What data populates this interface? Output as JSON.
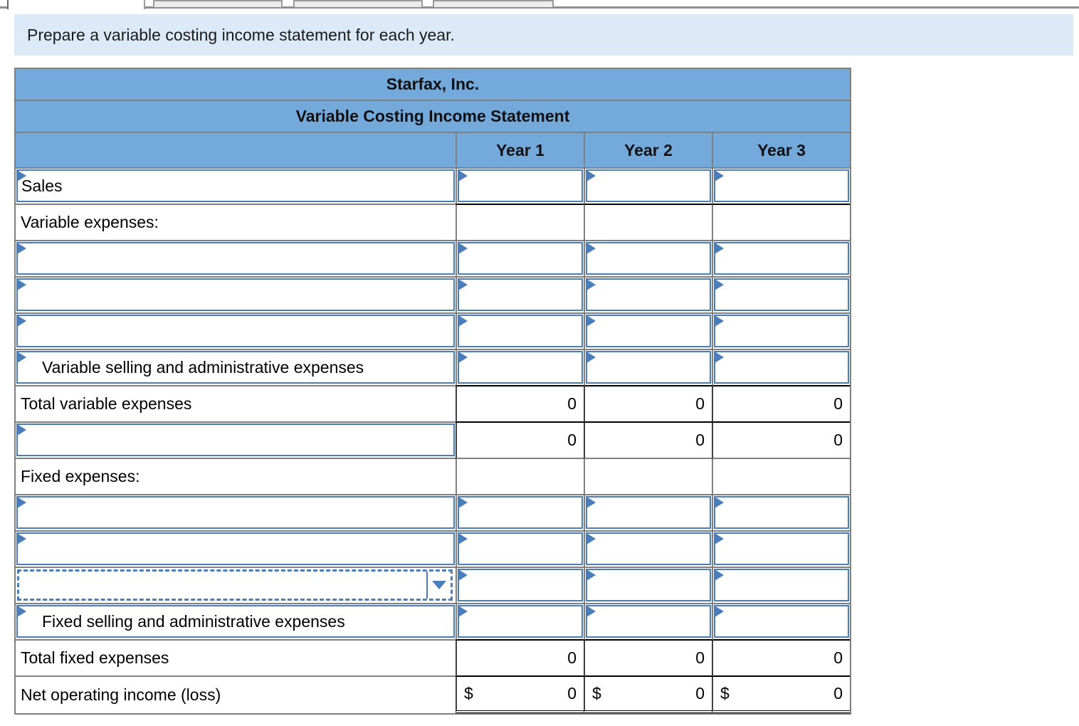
{
  "sheet_tabs": {
    "count": 4
  },
  "banner": {
    "text": "Prepare a variable costing income statement for each year."
  },
  "statement": {
    "company": "Starfax, Inc.",
    "title": "Variable Costing Income Statement",
    "columns": [
      "Year 1",
      "Year 2",
      "Year 3"
    ],
    "currency_symbol": "$",
    "rows": [
      {
        "label": "Sales",
        "label_type": "input",
        "indent": false,
        "amounts": {
          "type": "input"
        },
        "rule_below": true
      },
      {
        "label": "Variable expenses:",
        "label_type": "static",
        "indent": false,
        "amounts": {
          "type": "empty"
        }
      },
      {
        "label": "",
        "label_type": "input",
        "indent": false,
        "amounts": {
          "type": "input"
        }
      },
      {
        "label": "",
        "label_type": "input",
        "indent": false,
        "amounts": {
          "type": "input"
        }
      },
      {
        "label": "",
        "label_type": "input",
        "indent": false,
        "amounts": {
          "type": "input"
        }
      },
      {
        "label": "Variable selling and administrative expenses",
        "label_type": "input",
        "indent": true,
        "amounts": {
          "type": "input"
        },
        "rule_below": true
      },
      {
        "label": "Total variable expenses",
        "label_type": "static",
        "indent": false,
        "amounts": {
          "type": "value",
          "values": [
            "0",
            "0",
            "0"
          ]
        },
        "rule_below": true
      },
      {
        "label": "",
        "label_type": "input",
        "indent": false,
        "amounts": {
          "type": "value",
          "values": [
            "0",
            "0",
            "0"
          ]
        }
      },
      {
        "label": "Fixed expenses:",
        "label_type": "static",
        "indent": false,
        "amounts": {
          "type": "empty"
        }
      },
      {
        "label": "",
        "label_type": "input",
        "indent": false,
        "amounts": {
          "type": "input"
        }
      },
      {
        "label": "",
        "label_type": "input",
        "indent": false,
        "amounts": {
          "type": "input"
        }
      },
      {
        "label": "",
        "label_type": "dropdown",
        "indent": false,
        "amounts": {
          "type": "input"
        }
      },
      {
        "label": "Fixed selling and administrative expenses",
        "label_type": "input",
        "indent": true,
        "amounts": {
          "type": "input"
        },
        "rule_below": true
      },
      {
        "label": "Total fixed expenses",
        "label_type": "static",
        "indent": false,
        "amounts": {
          "type": "value",
          "values": [
            "0",
            "0",
            "0"
          ]
        },
        "rule_below": true
      },
      {
        "label": "Net operating income (loss)",
        "label_type": "static",
        "indent": false,
        "amounts": {
          "type": "value",
          "values": [
            "0",
            "0",
            "0"
          ],
          "currency": true
        },
        "double_rule_below": true
      }
    ]
  },
  "colors": {
    "header_blue": "#74A9DC",
    "input_border_blue": "#4A7EBB",
    "banner_bg": "#DCEAF8",
    "grid_gray": "#808080"
  }
}
